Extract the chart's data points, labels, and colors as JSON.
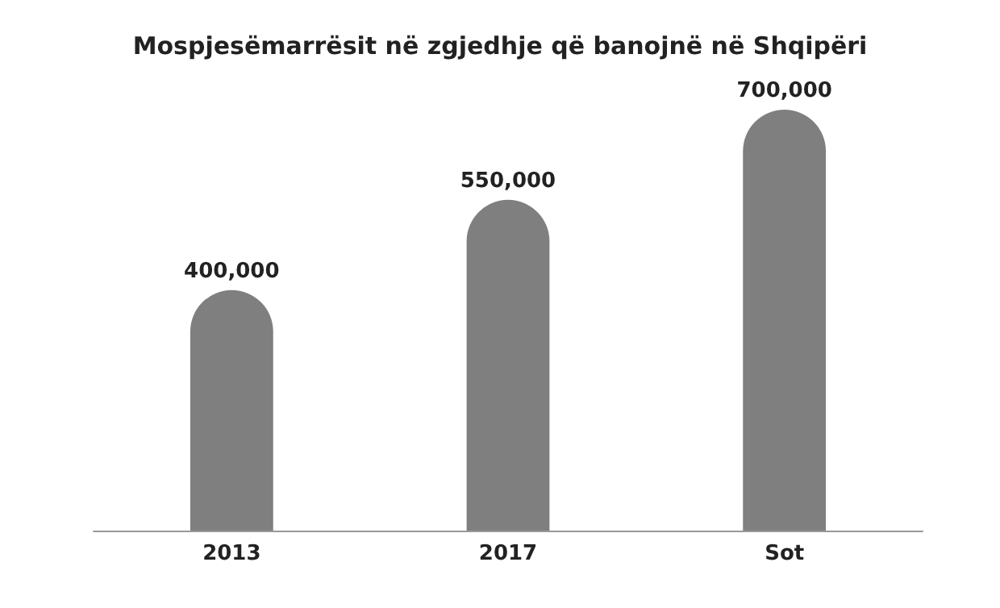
{
  "chart_data": {
    "type": "bar",
    "title": "Mospjesëmarrësit në zgjedhje që banojnë në Shqipëri",
    "categories": [
      "2013",
      "2017",
      "Sot"
    ],
    "values": [
      400000,
      550000,
      700000
    ],
    "value_labels": [
      "400,000",
      "550,000",
      "700,000"
    ],
    "color": "#7f7f7f"
  }
}
